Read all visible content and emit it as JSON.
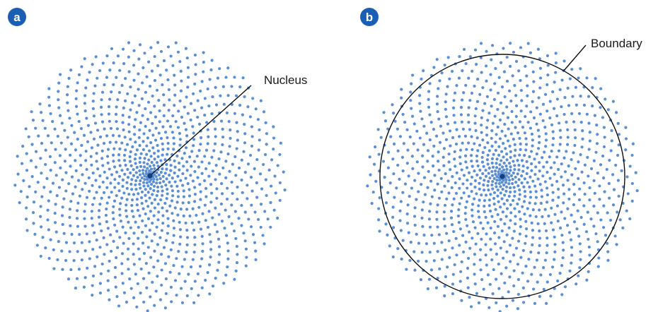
{
  "figure": {
    "colors": {
      "electron_dot": "#5b8fd4",
      "nucleus_dot": "#163e7a",
      "badge_fill": "#1a5fb4",
      "line": "#111111",
      "background": "#ffffff"
    },
    "panels": [
      {
        "id": "a",
        "label": "a",
        "annotation": "Nucleus",
        "has_boundary": false
      },
      {
        "id": "b",
        "label": "b",
        "annotation": "Boundary",
        "has_boundary": true
      }
    ]
  }
}
